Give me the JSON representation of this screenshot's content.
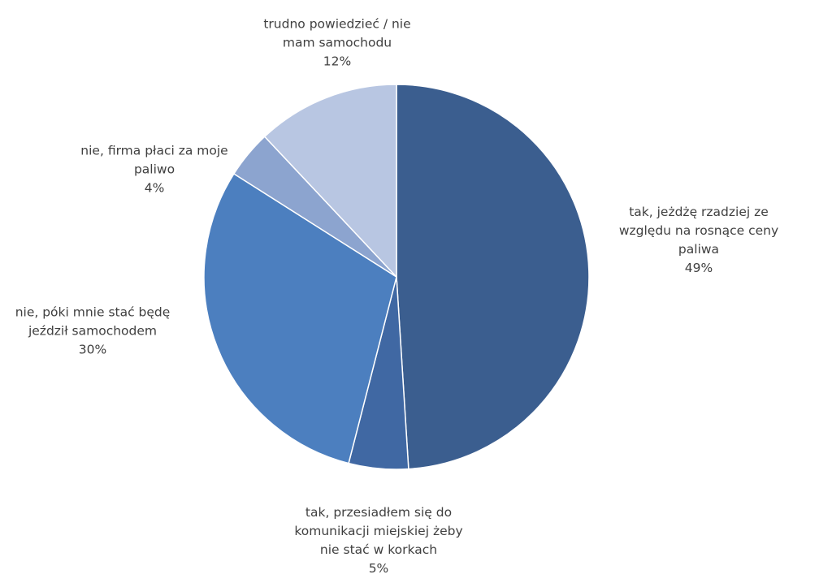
{
  "chart_data": {
    "type": "pie",
    "title": "",
    "start_angle_deg": 0,
    "direction": "clockwise",
    "slices": [
      {
        "label_lines": [
          "tak, jeżdżę rzadziej ze",
          "względu na rosnące ceny",
          "paliwa"
        ],
        "percent_label": "49%",
        "value": 49,
        "color": "#3b5e8f"
      },
      {
        "label_lines": [
          "tak, przesiadłem się do",
          "komunikacji miejskiej żeby",
          "nie stać w korkach"
        ],
        "percent_label": "5%",
        "value": 5,
        "color": "#4068a3"
      },
      {
        "label_lines": [
          "nie, póki mnie stać będę",
          "jeździł samochodem"
        ],
        "percent_label": "30%",
        "value": 30,
        "color": "#4c7fbf"
      },
      {
        "label_lines": [
          "nie, firma płaci za moje",
          "paliwo"
        ],
        "percent_label": "4%",
        "value": 4,
        "color": "#8ca4cf"
      },
      {
        "label_lines": [
          "trudno powiedzieć / nie",
          "mam samochodu"
        ],
        "percent_label": "12%",
        "value": 12,
        "color": "#b8c6e2"
      }
    ]
  }
}
